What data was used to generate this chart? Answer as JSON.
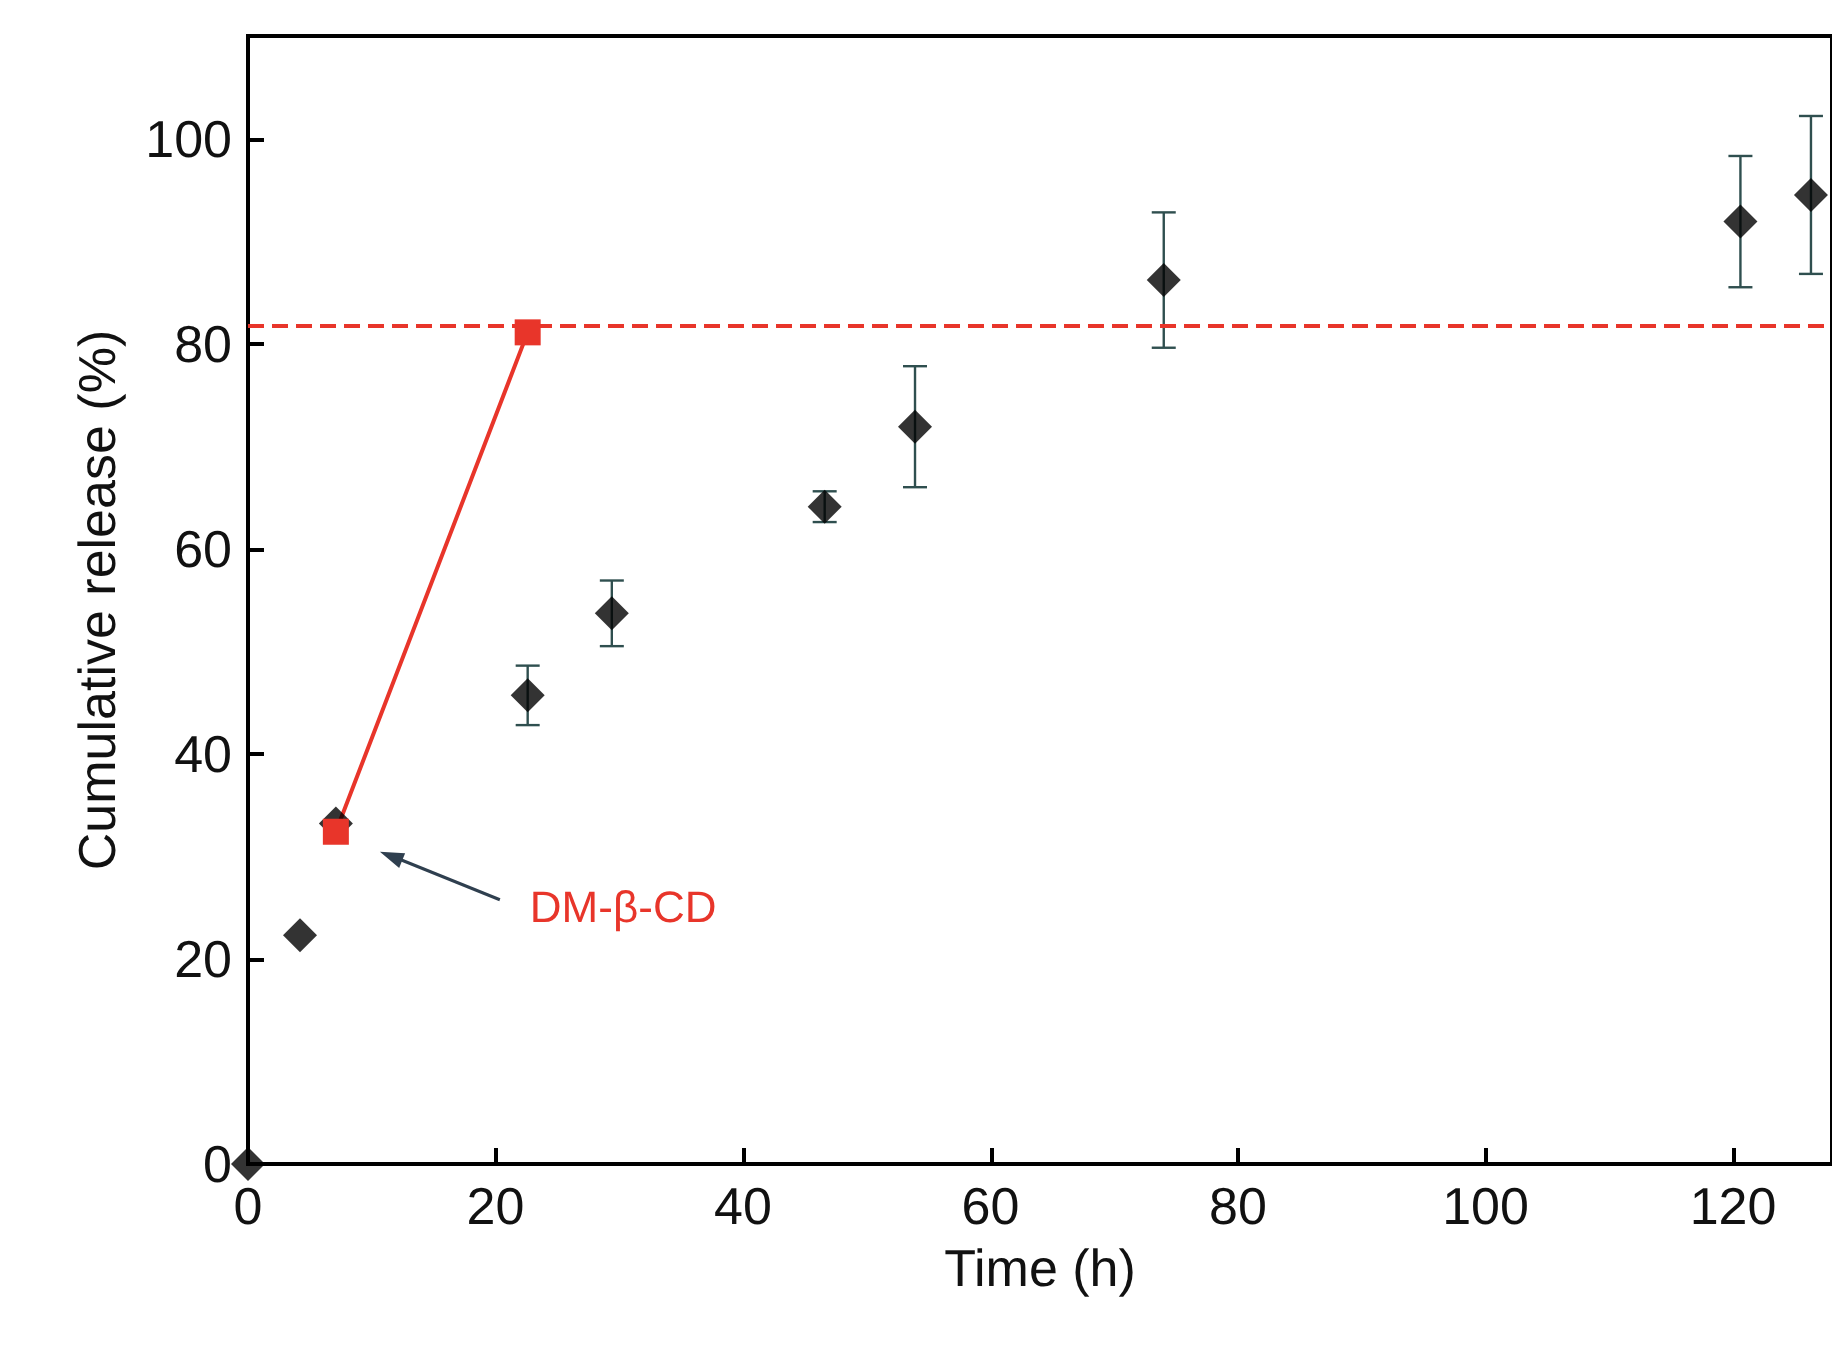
{
  "chart_data": {
    "type": "scatter",
    "xlabel": "Time (h)",
    "ylabel": "Cumulative release (%)",
    "xlim": [
      0,
      128
    ],
    "ylim": [
      0,
      110
    ],
    "xticks": [
      0,
      20,
      40,
      60,
      80,
      100,
      120
    ],
    "yticks": [
      0,
      20,
      40,
      60,
      80,
      100
    ],
    "grid": false,
    "series": [
      {
        "marker": "diamond",
        "color": "#000000",
        "x": [
          0,
          4.2,
          7.1,
          22.6,
          29.4,
          46.6,
          53.9,
          74,
          120.6,
          126.3
        ],
        "values": [
          0,
          22.3,
          33.2,
          45.7,
          53.7,
          64.1,
          71.9,
          86.2,
          91.9,
          94.5
        ],
        "errors": [
          null,
          null,
          null,
          2.9,
          3.2,
          1.5,
          5.9,
          6.6,
          6.4,
          7.7
        ]
      },
      {
        "type": "line",
        "marker": "square",
        "line_style": "solid",
        "color": "#e8352a",
        "x": [
          7.1,
          22.6
        ],
        "values": [
          32.4,
          81.1
        ]
      }
    ],
    "ref_lines": [
      {
        "axis": "y",
        "value": 81.8,
        "color": "#e8352a",
        "line_style": "dashed"
      }
    ],
    "annotations": [
      "DM-β-CD"
    ]
  }
}
